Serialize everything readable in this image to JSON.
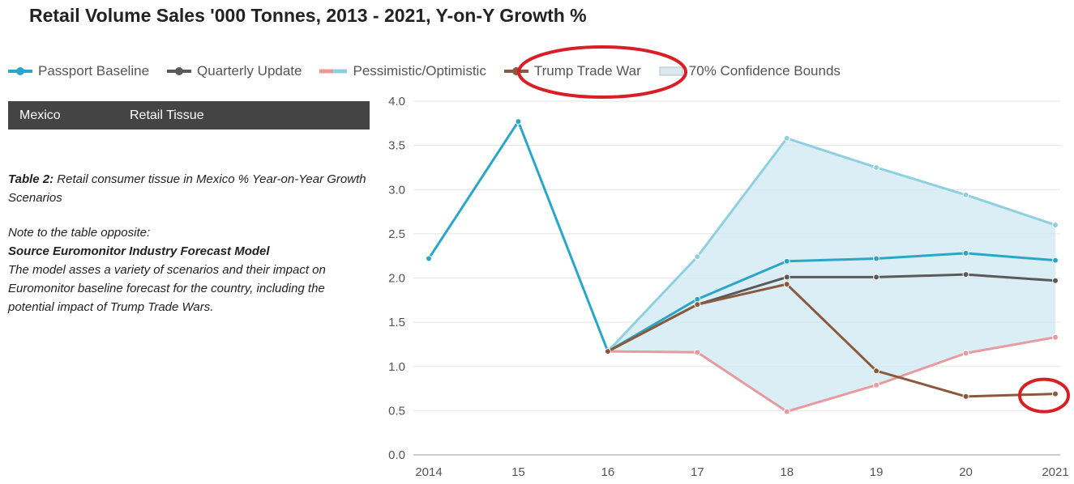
{
  "title": "Retail Volume Sales '000 Tonnes, 2013 - 2021, Y-on-Y Growth %",
  "legend": [
    {
      "label": "Passport Baseline",
      "color": "#2aa6c8",
      "kind": "line"
    },
    {
      "label": "Quarterly Update",
      "color": "#5a5a5a",
      "kind": "line"
    },
    {
      "label": "Pessimistic/Optimistic",
      "color": "#e89a9e",
      "color2": "#8ed0de",
      "kind": "dual"
    },
    {
      "label": "Trump Trade War",
      "color": "#8a5a3c",
      "kind": "line"
    },
    {
      "label": "70% Confidence Bounds",
      "color": "#dde8ee",
      "kind": "box"
    }
  ],
  "table_header": {
    "country": "Mexico",
    "category": "Retail Tissue"
  },
  "note": {
    "caption_bold": "Table 2:",
    "caption_rest": " Retail consumer tissue in Mexico % Year-on-Year Growth Scenarios",
    "intro": "Note to the table opposite:",
    "source": "Source Euromonitor Industry Forecast Model",
    "body": "The model asses a variety of scenarios and their impact on Euromonitor baseline forecast for the country, including the potential impact of Trump Trade Wars."
  },
  "annotation_color": "#d91f26",
  "chart_data": {
    "type": "line",
    "x": [
      "2014",
      "15",
      "16",
      "17",
      "18",
      "19",
      "20",
      "2021"
    ],
    "ylim": [
      0,
      4.0
    ],
    "yticks": [
      "0.0",
      "0.5",
      "1.0",
      "1.5",
      "2.0",
      "2.5",
      "3.0",
      "3.5",
      "4.0"
    ],
    "grid": true,
    "legend_position": "top",
    "series": [
      {
        "name": "Passport Baseline",
        "color": "#2aa6c8",
        "values": [
          2.22,
          3.77,
          1.17,
          1.76,
          2.19,
          2.22,
          2.28,
          2.2
        ]
      },
      {
        "name": "Quarterly Update",
        "color": "#5a5a5a",
        "values": [
          null,
          null,
          1.17,
          1.7,
          2.01,
          2.01,
          2.04,
          1.97
        ]
      },
      {
        "name": "Optimistic",
        "color": "#8ed0de",
        "values": [
          null,
          null,
          1.17,
          2.24,
          3.58,
          3.25,
          2.94,
          2.6
        ]
      },
      {
        "name": "Pessimistic",
        "color": "#e89a9e",
        "values": [
          null,
          null,
          1.17,
          1.16,
          0.49,
          0.79,
          1.15,
          1.33
        ]
      },
      {
        "name": "Trump Trade War",
        "color": "#8a5a3c",
        "values": [
          null,
          null,
          1.17,
          1.7,
          1.93,
          0.95,
          0.66,
          0.69
        ]
      }
    ],
    "confidence_band": {
      "upper": [
        null,
        null,
        1.17,
        2.24,
        3.58,
        3.25,
        2.94,
        2.6
      ],
      "lower": [
        null,
        null,
        1.17,
        1.16,
        0.49,
        0.79,
        1.15,
        1.33
      ],
      "color": "#cfe7f2"
    }
  }
}
